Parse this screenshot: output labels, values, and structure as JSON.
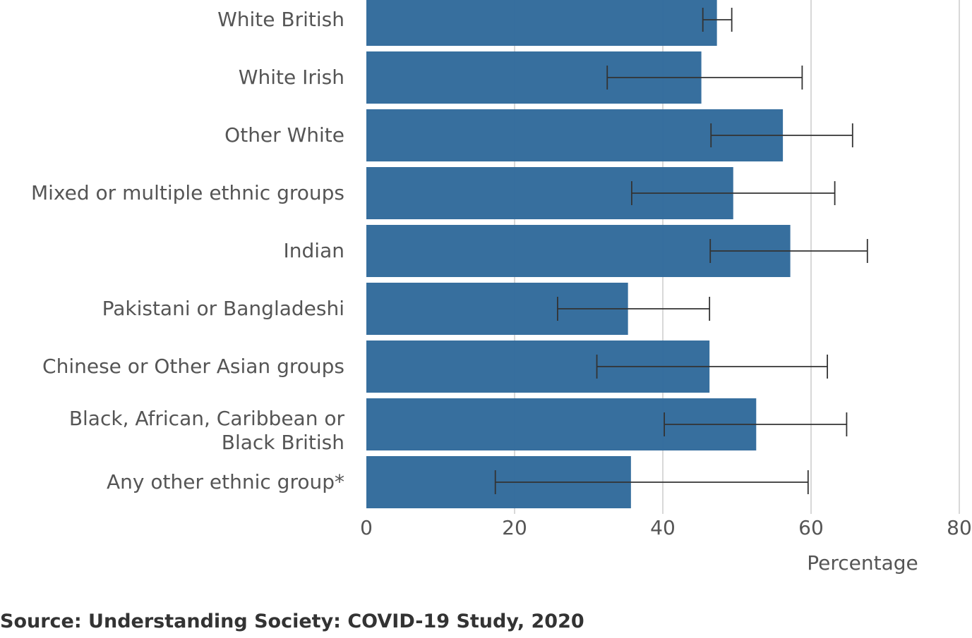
{
  "chart_data": {
    "type": "bar",
    "orientation": "horizontal",
    "categories": [
      "White British",
      "White Irish",
      "Other White",
      "Mixed or multiple ethnic groups",
      "Indian",
      "Pakistani or Bangladeshi",
      "Chinese or Other Asian groups",
      "Black, African, Caribbean or Black British",
      "Any other ethnic group*"
    ],
    "category_lines": [
      [
        "White British"
      ],
      [
        "White Irish"
      ],
      [
        "Other White"
      ],
      [
        "Mixed or multiple ethnic groups"
      ],
      [
        "Indian"
      ],
      [
        "Pakistani or Bangladeshi"
      ],
      [
        "Chinese or Other Asian groups"
      ],
      [
        "Black, African, Caribbean or",
        "Black British"
      ],
      [
        "Any other ethnic group*"
      ]
    ],
    "values": [
      47.3,
      45.2,
      56.2,
      49.5,
      57.2,
      35.3,
      46.3,
      52.6,
      35.7
    ],
    "error_low": [
      45.4,
      32.5,
      46.5,
      35.8,
      46.4,
      25.8,
      31.1,
      40.2,
      17.4
    ],
    "error_high": [
      49.3,
      58.8,
      65.6,
      63.2,
      67.6,
      46.3,
      62.2,
      64.8,
      59.6
    ],
    "xlabel": "Percentage",
    "xlim": [
      0,
      80
    ],
    "xticks": [
      "0",
      "20",
      "40",
      "60",
      "80"
    ],
    "grid": true,
    "bar_color": "#336c9c",
    "errorbar_color": "#333333",
    "grid_color": "#cccccc"
  },
  "source": "Source: Understanding Society: COVID-19 Study, 2020"
}
